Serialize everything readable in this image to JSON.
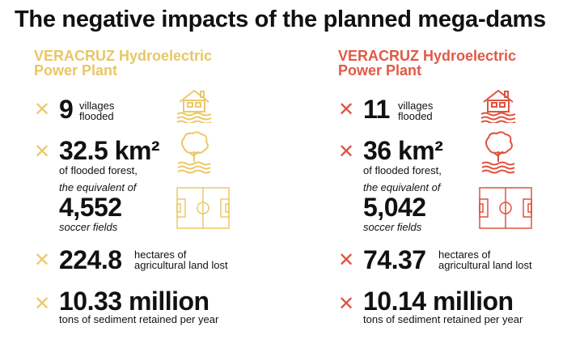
{
  "title": "The negative impacts of the planned mega-dams",
  "columns": [
    {
      "plant_line1": "VERACRUZ Hydroelectric",
      "plant_line2": "Power Plant",
      "villages_count": "9",
      "villages_l1": "villages",
      "villages_l2": "flooded",
      "forest_area": "32.5 km²",
      "forest_label": "of flooded forest,",
      "equivalent_label": "the equivalent of",
      "soccer_count": "4,552",
      "soccer_label": "soccer fields",
      "hectares": "224.8",
      "hectares_l1": "hectares of",
      "hectares_l2": "agricultural land lost",
      "sediment": "10.33 million",
      "sediment_label": "tons of sediment retained per year",
      "accent_color": "#ebc96b"
    },
    {
      "plant_line1": "VERACRUZ Hydroelectric",
      "plant_line2": "Power Plant",
      "villages_count": "11",
      "villages_l1": "villages",
      "villages_l2": "flooded",
      "forest_area": "36 km²",
      "forest_label": "of flooded forest,",
      "equivalent_label": "the equivalent of",
      "soccer_count": "5,042",
      "soccer_label": "soccer fields",
      "hectares": "74.37",
      "hectares_l1": "hectares of",
      "hectares_l2": "agricultural land lost",
      "sediment": "10.14 million",
      "sediment_label": "tons of sediment retained per year",
      "accent_color": "#e0523e"
    }
  ],
  "icons": {
    "cross": "✕",
    "house": "flooded-house-icon",
    "tree": "flooded-tree-icon",
    "field": "soccer-field-icon"
  }
}
